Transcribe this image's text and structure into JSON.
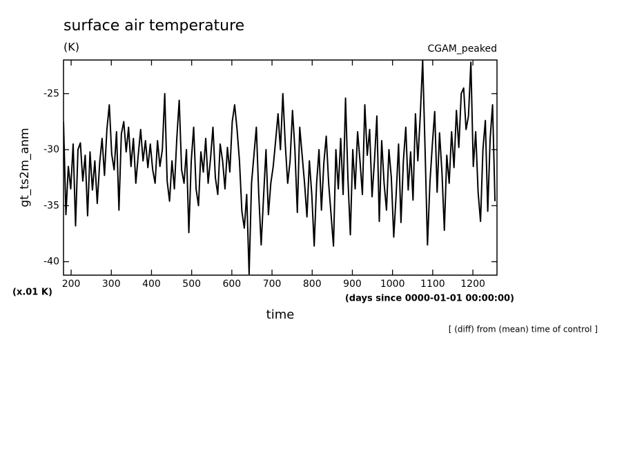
{
  "chart_data": {
    "type": "line",
    "title": "surface air temperature",
    "units": "(K)",
    "subtitle": "CGAM_peaked",
    "y_label": "gt_ts2m_anm",
    "y_scale_note": "(x.01 K)",
    "x_label": "time",
    "x_units": "(days since 0000-01-01 00:00:00)",
    "annotation": "[ (diff) from (mean) time of control ]",
    "xlim": [
      181,
      1260
    ],
    "ylim": [
      -41.2,
      -22
    ],
    "xticks": [
      200,
      300,
      400,
      500,
      600,
      700,
      800,
      900,
      1000,
      1100,
      1200
    ],
    "yticks": [
      -40,
      -35,
      -30,
      -25
    ],
    "color": "#000000",
    "x": [
      181,
      187,
      193,
      199,
      205,
      211,
      217,
      223,
      229,
      235,
      241,
      247,
      253,
      259,
      265,
      271,
      277,
      283,
      289,
      295,
      301,
      307,
      313,
      319,
      325,
      331,
      337,
      343,
      349,
      355,
      361,
      367,
      373,
      379,
      385,
      391,
      397,
      403,
      409,
      415,
      421,
      427,
      433,
      439,
      445,
      451,
      457,
      463,
      469,
      475,
      481,
      487,
      493,
      499,
      505,
      511,
      517,
      523,
      529,
      535,
      541,
      547,
      553,
      559,
      565,
      571,
      577,
      583,
      589,
      595,
      601,
      607,
      613,
      619,
      625,
      631,
      637,
      643,
      649,
      655,
      661,
      667,
      673,
      679,
      685,
      691,
      697,
      703,
      709,
      715,
      721,
      727,
      733,
      739,
      745,
      751,
      757,
      763,
      769,
      775,
      781,
      787,
      793,
      799,
      805,
      811,
      817,
      823,
      829,
      835,
      841,
      847,
      853,
      859,
      865,
      871,
      877,
      883,
      889,
      895,
      901,
      907,
      913,
      919,
      925,
      931,
      937,
      943,
      949,
      955,
      961,
      967,
      973,
      979,
      985,
      991,
      997,
      1003,
      1009,
      1015,
      1021,
      1027,
      1033,
      1039,
      1045,
      1051,
      1057,
      1063,
      1069,
      1075,
      1081,
      1087,
      1093,
      1099,
      1105,
      1111,
      1117,
      1123,
      1129,
      1135,
      1141,
      1147,
      1153,
      1159,
      1165,
      1171,
      1177,
      1183,
      1189,
      1195,
      1201,
      1207,
      1213,
      1219,
      1225,
      1231,
      1237,
      1243,
      1249,
      1255
    ],
    "values": [
      -27.5,
      -35.8,
      -31.5,
      -33.5,
      -29.5,
      -36.8,
      -30,
      -29.4,
      -32.8,
      -30.5,
      -35.9,
      -30.2,
      -33.6,
      -31,
      -34.8,
      -31.2,
      -29,
      -32.3,
      -28.2,
      -26,
      -30.4,
      -31.8,
      -28.4,
      -35.4,
      -28.6,
      -27.5,
      -30.2,
      -28,
      -31.5,
      -29,
      -33,
      -30.5,
      -28.2,
      -31,
      -29.2,
      -31.6,
      -29.5,
      -31.8,
      -33,
      -29.2,
      -31.5,
      -30,
      -25,
      -32.8,
      -34.6,
      -31,
      -33.5,
      -29,
      -25.6,
      -31.8,
      -33,
      -30,
      -37.4,
      -31,
      -28,
      -33.5,
      -35,
      -30.2,
      -32,
      -29,
      -33,
      -30.8,
      -28,
      -32.5,
      -34,
      -29.5,
      -31,
      -33.5,
      -29.8,
      -32,
      -27.5,
      -26,
      -28.2,
      -31,
      -35.5,
      -37,
      -34,
      -41.1,
      -33,
      -30.5,
      -28,
      -34,
      -38.5,
      -34.2,
      -30,
      -35.8,
      -33,
      -31.5,
      -29.2,
      -26.8,
      -30,
      -25,
      -29.5,
      -33,
      -31,
      -26.5,
      -30,
      -35.6,
      -28,
      -30.5,
      -33,
      -36,
      -31,
      -34,
      -38.6,
      -33,
      -30,
      -35.4,
      -31.2,
      -28.8,
      -33,
      -35.8,
      -38.6,
      -30,
      -33.5,
      -29,
      -34,
      -25.4,
      -32.6,
      -37.6,
      -30,
      -33.5,
      -28.4,
      -31,
      -34,
      -26,
      -30.5,
      -28.2,
      -34.2,
      -31,
      -27,
      -36.4,
      -29.2,
      -33,
      -35.4,
      -30,
      -32.5,
      -37.8,
      -34,
      -29.5,
      -36.5,
      -31,
      -28,
      -33.6,
      -30.2,
      -34.5,
      -26.8,
      -31,
      -27,
      -22,
      -30,
      -38.5,
      -33,
      -29.6,
      -26.6,
      -33.8,
      -28.5,
      -32,
      -37.2,
      -30.5,
      -33,
      -28.4,
      -31.6,
      -26.5,
      -29.8,
      -25,
      -24.5,
      -28.2,
      -27,
      -22.2,
      -31.5,
      -28.4,
      -33.8,
      -36.4,
      -30,
      -27.4,
      -35.5,
      -29,
      -26,
      -34.6
    ]
  }
}
